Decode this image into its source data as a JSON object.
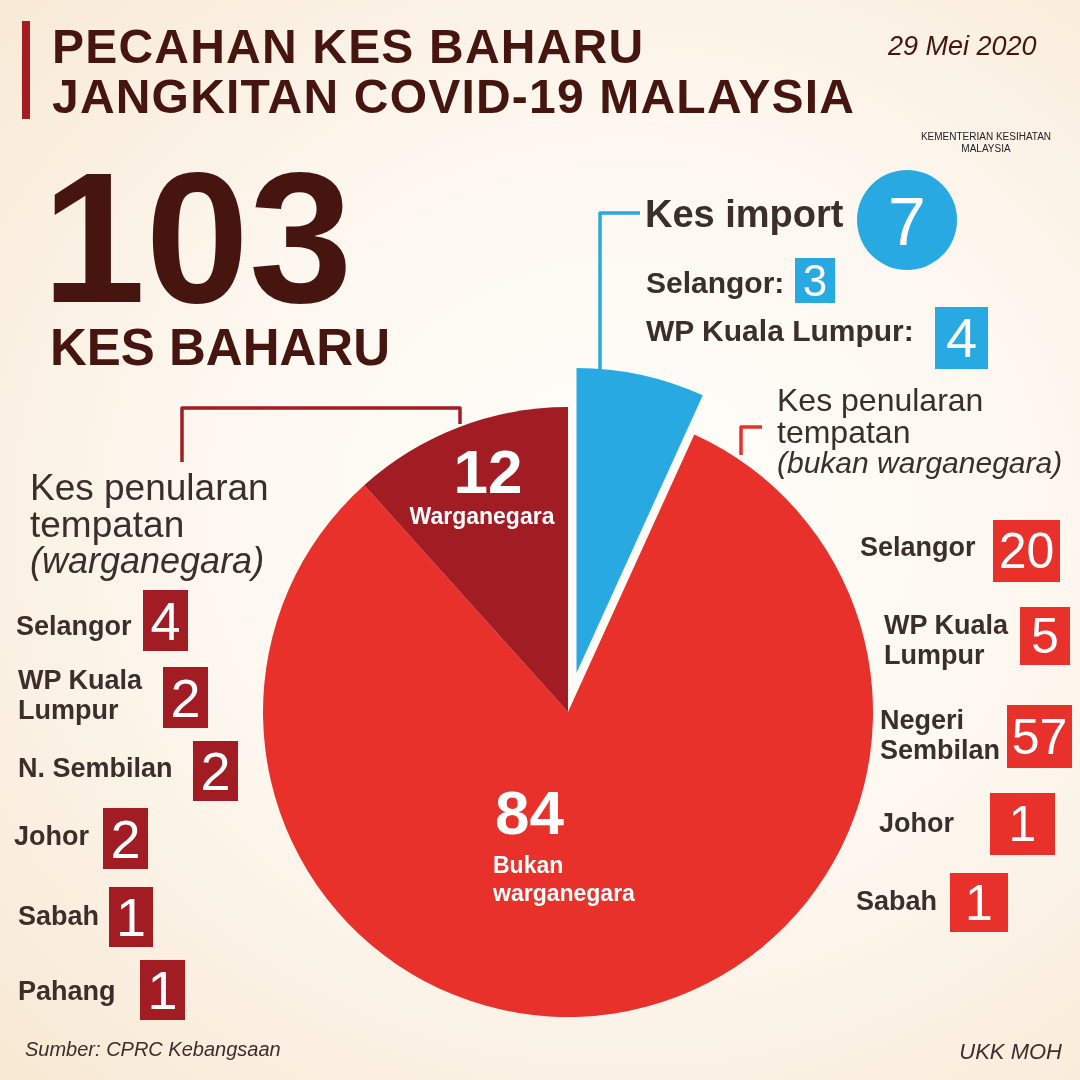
{
  "chart_data": {
    "type": "pie",
    "title": "PECAHAN KES BAHARU JANGKITAN COVID-19 MALAYSIA",
    "subtitle": "29 Mei 2020",
    "categories": [
      "Kes import",
      "Bukan warganegara",
      "Warganegara"
    ],
    "values": [
      7,
      84,
      12
    ],
    "colors": [
      "#29a9e1",
      "#e8312a",
      "#a21c24"
    ],
    "data_labels": true,
    "annotations": [
      "103",
      "KES BAHARU",
      "KEMENTERIAN KESIHATAN MALAYSIA",
      "Selangor:",
      "3",
      "WP Kuala Lumpur:",
      "4",
      "Kes penularan tempatan",
      "(bukan warganegara)",
      "Selangor",
      "20",
      "WP Kuala Lumpur",
      "5",
      "Negeri Sembilan",
      "57",
      "Johor",
      "1",
      "Sabah",
      "1",
      "Kes penularan tempatan",
      "(warganegara)",
      "Selangor",
      "4",
      "WP Kuala Lumpur",
      "2",
      "N. Sembilan",
      "2",
      "Johor",
      "2",
      "Sabah",
      "1",
      "Pahang",
      "1",
      "Sumber: CPRC Kebangsaan",
      "UKK MOH"
    ]
  }
}
